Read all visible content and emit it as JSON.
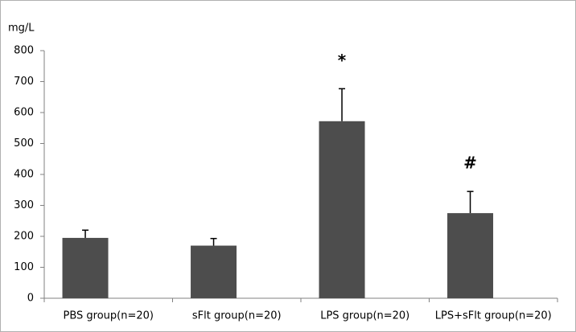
{
  "chart_data": {
    "type": "bar",
    "y_label": "mg/L",
    "categories": [
      "PBS group(n=20)",
      "sFlt group(n=20)",
      "LPS group(n=20)",
      "LPS+sFlt group(n=20)"
    ],
    "values": [
      195,
      170,
      572,
      275
    ],
    "errors": [
      25,
      23,
      105,
      70
    ],
    "annotations": [
      null,
      null,
      "*",
      "#"
    ],
    "color": "#4d4d4d",
    "ylim": [
      0,
      800
    ],
    "yticks": [
      0,
      100,
      200,
      300,
      400,
      500,
      600,
      700,
      800
    ],
    "grid": false
  }
}
